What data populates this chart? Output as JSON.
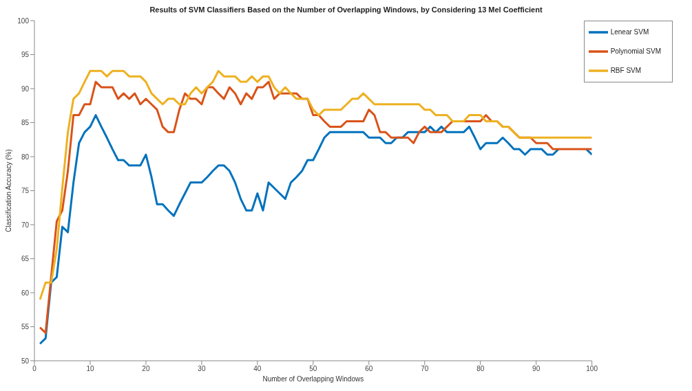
{
  "chart_data": {
    "type": "line",
    "title": "Results of SVM Classifiers Based on the Number of Overlapping Windows, by Considering 13 Mel Coefficient",
    "xlabel": "Number of Overlapping Windows",
    "ylabel": "Classification Accuracy (%)",
    "x": [
      1,
      2,
      3,
      4,
      5,
      6,
      7,
      8,
      9,
      10,
      11,
      12,
      13,
      14,
      15,
      16,
      17,
      18,
      19,
      20,
      21,
      22,
      23,
      24,
      25,
      26,
      27,
      28,
      29,
      30,
      31,
      32,
      33,
      34,
      35,
      36,
      37,
      38,
      39,
      40,
      41,
      42,
      43,
      44,
      45,
      46,
      47,
      48,
      49,
      50,
      51,
      52,
      53,
      54,
      55,
      56,
      57,
      58,
      59,
      60,
      61,
      62,
      63,
      64,
      65,
      66,
      67,
      68,
      69,
      70,
      71,
      72,
      73,
      74,
      75,
      76,
      77,
      78,
      79,
      80,
      81,
      82,
      83,
      84,
      85,
      86,
      87,
      88,
      89,
      90,
      91,
      92,
      93,
      94,
      95,
      96,
      97,
      98,
      99,
      100
    ],
    "series": [
      {
        "name": "Lenear SVM",
        "color": "#0072bd",
        "values": [
          52.5,
          53.3,
          61.5,
          62.3,
          69.7,
          68.9,
          76.2,
          82.0,
          83.6,
          84.4,
          86.1,
          84.4,
          82.8,
          81.1,
          79.5,
          79.5,
          78.7,
          78.7,
          78.7,
          80.3,
          77.0,
          73.0,
          73.0,
          72.1,
          71.3,
          73.0,
          74.6,
          76.2,
          76.2,
          76.2,
          77.0,
          77.9,
          78.7,
          78.7,
          77.9,
          76.2,
          73.8,
          72.1,
          72.1,
          74.6,
          72.1,
          76.2,
          75.4,
          74.6,
          73.8,
          76.2,
          77.0,
          77.9,
          79.5,
          79.5,
          81.1,
          82.8,
          83.6,
          83.6,
          83.6,
          83.6,
          83.6,
          83.6,
          83.6,
          82.8,
          82.8,
          82.8,
          82.0,
          82.0,
          82.8,
          82.8,
          83.6,
          83.6,
          83.6,
          83.6,
          84.4,
          83.6,
          84.4,
          83.6,
          83.6,
          83.6,
          83.6,
          84.4,
          82.8,
          81.1,
          82.0,
          82.0,
          82.0,
          82.8,
          82.0,
          81.1,
          81.1,
          80.3,
          81.1,
          81.1,
          81.1,
          80.3,
          80.3,
          81.1,
          null,
          null,
          null,
          null,
          81.1,
          80.3
        ]
      },
      {
        "name": "Polynomial SVM",
        "color": "#d95319",
        "values": [
          54.9,
          54.1,
          62.3,
          70.5,
          72.1,
          77.9,
          86.1,
          86.1,
          87.7,
          87.7,
          91.0,
          90.2,
          90.2,
          90.2,
          88.5,
          89.3,
          88.5,
          89.3,
          87.7,
          88.5,
          87.7,
          86.9,
          84.4,
          83.6,
          83.6,
          86.9,
          89.3,
          88.5,
          88.5,
          87.7,
          90.2,
          90.2,
          89.3,
          88.5,
          90.2,
          89.3,
          87.7,
          89.3,
          88.5,
          90.2,
          90.2,
          91.0,
          88.5,
          89.3,
          89.3,
          89.3,
          89.3,
          88.5,
          88.5,
          86.1,
          86.1,
          85.2,
          84.4,
          84.4,
          84.4,
          85.2,
          85.2,
          85.2,
          85.2,
          86.9,
          86.1,
          83.6,
          83.6,
          82.8,
          82.8,
          82.8,
          82.8,
          82.0,
          83.6,
          84.4,
          83.6,
          83.6,
          83.6,
          84.4,
          85.2,
          85.2,
          85.2,
          85.2,
          85.2,
          85.2,
          86.1,
          85.2,
          85.2,
          84.4,
          84.4,
          83.6,
          82.8,
          82.8,
          82.8,
          82.0,
          82.0,
          82.0,
          81.1,
          81.1,
          81.1,
          81.1,
          81.1,
          81.1,
          81.1,
          81.1
        ]
      },
      {
        "name": "RBF SVM",
        "color": "#edb120",
        "values": [
          59.0,
          61.5,
          61.5,
          66.4,
          75.4,
          83.6,
          88.5,
          89.3,
          91.0,
          92.6,
          92.6,
          92.6,
          91.8,
          92.6,
          92.6,
          92.6,
          91.8,
          91.8,
          91.8,
          91.0,
          89.3,
          88.5,
          87.7,
          88.5,
          88.5,
          87.7,
          87.7,
          89.3,
          90.2,
          89.3,
          90.2,
          91.0,
          92.6,
          91.8,
          91.8,
          91.8,
          91.0,
          91.0,
          91.8,
          91.0,
          91.8,
          91.8,
          90.2,
          89.3,
          90.2,
          89.3,
          88.5,
          88.5,
          88.5,
          86.9,
          86.1,
          86.9,
          86.9,
          86.9,
          86.9,
          87.7,
          88.5,
          88.5,
          89.3,
          88.5,
          87.7,
          87.7,
          87.7,
          87.7,
          87.7,
          87.7,
          87.7,
          87.7,
          87.7,
          86.9,
          86.9,
          86.1,
          86.1,
          86.1,
          85.2,
          85.2,
          85.2,
          86.1,
          86.1,
          86.1,
          85.2,
          85.2,
          85.2,
          84.4,
          84.4,
          83.6,
          82.8,
          82.8,
          82.8,
          82.8,
          82.8,
          82.8,
          82.8,
          82.8,
          82.8,
          82.8,
          82.8,
          82.8,
          82.8,
          82.8
        ]
      }
    ],
    "xlim": [
      0,
      100
    ],
    "xticks": [
      0,
      10,
      20,
      30,
      40,
      50,
      60,
      70,
      80,
      90,
      100
    ],
    "ylim": [
      50,
      100
    ],
    "yticks": [
      50,
      55,
      60,
      65,
      70,
      75,
      80,
      85,
      90,
      95,
      100
    ],
    "grid": false,
    "legend": "top right",
    "marker": "none",
    "line_style": "solid"
  }
}
